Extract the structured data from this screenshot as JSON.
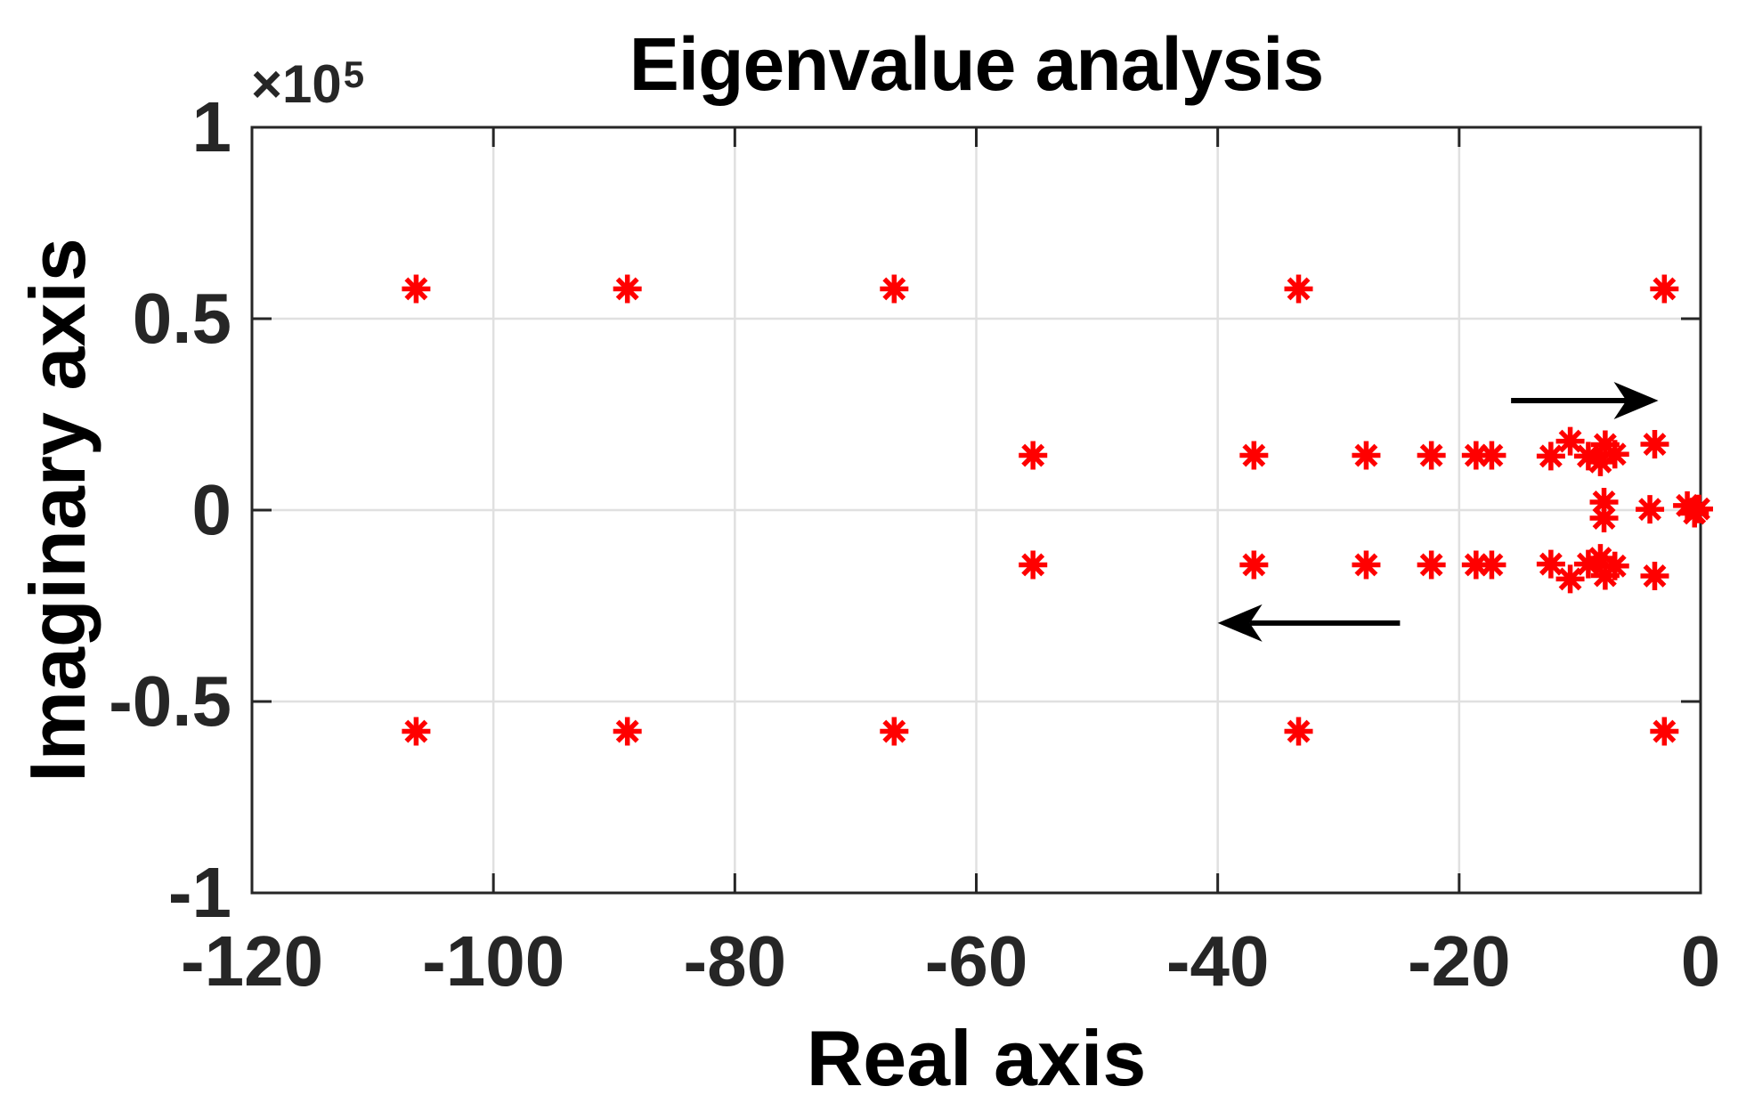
{
  "chart": {
    "title": "Eigenvalue analysis",
    "xlabel": "Real axis",
    "ylabel": "Imaginary axis",
    "y_exponent_base": "×10",
    "y_exponent_power": "5"
  },
  "colors": {
    "marker": "#ff0000",
    "axis": "#262626",
    "grid": "#e0e0e0",
    "arrow": "#000000",
    "text": "#000000",
    "background": "#ffffff"
  },
  "chart_data": {
    "type": "scatter",
    "title": "Eigenvalue analysis",
    "xlabel": "Real axis",
    "ylabel": "Imaginary axis",
    "y_scale_note": "imaginary values are in units of 1e5",
    "xlim": [
      -120,
      0
    ],
    "ylim_e5": [
      -1,
      1
    ],
    "grid": true,
    "legend": null,
    "marker": "*",
    "x_ticks": [
      -120,
      -100,
      -80,
      -60,
      -40,
      -20,
      0
    ],
    "x_tick_labels": [
      "-120",
      "-100",
      "-80",
      "-60",
      "-40",
      "-20",
      "0"
    ],
    "y_ticks_e5": [
      1,
      0.5,
      0,
      -0.5,
      -1
    ],
    "y_tick_labels": [
      "1",
      "0.5",
      "0",
      "-0.5",
      "-1"
    ],
    "points_re_im_e5": [
      [
        -106.4,
        0.578
      ],
      [
        -88.9,
        0.578
      ],
      [
        -66.8,
        0.578
      ],
      [
        -33.3,
        0.578
      ],
      [
        -3.0,
        0.578
      ],
      [
        -106.4,
        -0.578
      ],
      [
        -88.9,
        -0.578
      ],
      [
        -66.8,
        -0.578
      ],
      [
        -33.3,
        -0.578
      ],
      [
        -3.0,
        -0.578
      ],
      [
        -55.3,
        0.143
      ],
      [
        -37.0,
        0.143
      ],
      [
        -27.7,
        0.143
      ],
      [
        -22.3,
        0.143
      ],
      [
        -18.6,
        0.143
      ],
      [
        -17.3,
        0.143
      ],
      [
        -12.4,
        0.141
      ],
      [
        -9.3,
        0.141
      ],
      [
        -55.3,
        -0.143
      ],
      [
        -37.0,
        -0.143
      ],
      [
        -27.7,
        -0.143
      ],
      [
        -22.3,
        -0.143
      ],
      [
        -18.6,
        -0.143
      ],
      [
        -17.3,
        -0.143
      ],
      [
        -12.4,
        -0.141
      ],
      [
        -9.3,
        -0.141
      ],
      [
        -10.8,
        0.18
      ],
      [
        -10.8,
        -0.18
      ],
      [
        -3.8,
        0.172
      ],
      [
        -3.8,
        -0.172
      ],
      [
        -7.9,
        0.171
      ],
      [
        -7.9,
        -0.171
      ],
      [
        -7.1,
        0.146
      ],
      [
        -7.1,
        -0.146
      ],
      [
        -8.3,
        0.126
      ],
      [
        -8.3,
        -0.126
      ],
      [
        -8.0,
        0.021
      ],
      [
        -8.0,
        -0.021
      ],
      [
        -4.2,
        0.002
      ],
      [
        -1.1,
        0.012
      ],
      [
        -0.5,
        -0.008
      ],
      [
        -0.15,
        0.003
      ]
    ],
    "arrows": [
      {
        "from": [
          -15.7,
          0.286
        ],
        "to": [
          -3.5,
          0.286
        ],
        "direction": "right"
      },
      {
        "from": [
          -24.9,
          -0.295
        ],
        "to": [
          -40.0,
          -0.295
        ],
        "direction": "left"
      }
    ]
  }
}
